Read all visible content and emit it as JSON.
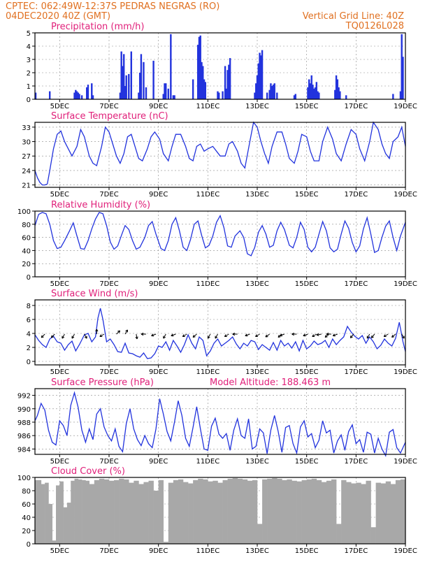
{
  "header": {
    "line1_left": "CPTEC:   062:49W-12:37S   PEDRAS NEGRAS (RO)",
    "line2_left": "04DEC2020 40Z (GMT)",
    "line2_right": "Vertical Grid Line: 40Z",
    "line3_right": "TQ0126L028"
  },
  "colors": {
    "header": "#e07020",
    "title": "#e0207a",
    "line": "#2233dd",
    "cloud": "#a8a8a8"
  },
  "x_axis": {
    "tick_labels": [
      "5DEC",
      "7DEC",
      "9DEC",
      "11DEC",
      "13DEC",
      "15DEC",
      "17DEC",
      "19DEC"
    ],
    "tick_days": [
      5,
      7,
      9,
      11,
      13,
      15,
      17,
      19
    ],
    "domain_days": [
      4.0,
      19.0
    ]
  },
  "chart_data": [
    {
      "type": "bar",
      "title": "Precipitation (mm/h)",
      "ylim": [
        0,
        5
      ],
      "yticks": [
        "0",
        "1",
        "2",
        "3",
        "4",
        "5"
      ],
      "x_days": [
        4.03,
        4.6,
        5.6,
        5.65,
        5.7,
        5.75,
        5.8,
        5.9,
        6.1,
        6.15,
        6.3,
        6.35,
        7.45,
        7.5,
        7.55,
        7.6,
        7.65,
        7.7,
        7.8,
        7.9,
        8.2,
        8.25,
        8.3,
        8.4,
        8.5,
        8.8,
        9.2,
        9.25,
        9.3,
        9.4,
        9.5,
        9.6,
        9.65,
        10.4,
        10.6,
        10.65,
        10.7,
        10.75,
        10.8,
        10.85,
        10.9,
        11.4,
        11.45,
        11.6,
        11.7,
        11.75,
        11.8,
        11.85,
        11.9,
        12.9,
        12.95,
        13.0,
        13.05,
        13.1,
        13.15,
        13.2,
        13.4,
        13.5,
        13.55,
        13.6,
        13.65,
        13.7,
        13.8,
        14.5,
        14.55,
        15.05,
        15.1,
        15.15,
        15.2,
        15.25,
        15.3,
        15.35,
        15.4,
        15.45,
        15.5,
        16.15,
        16.2,
        16.25,
        16.3,
        16.35,
        16.6,
        18.5,
        18.8,
        18.85,
        18.9
      ],
      "values": [
        0.5,
        0.6,
        0.5,
        0.7,
        0.6,
        0.5,
        0.4,
        0.3,
        0.9,
        1.1,
        1.2,
        0.3,
        0.5,
        3.6,
        2.5,
        3.4,
        1.0,
        1.8,
        1.9,
        3.6,
        0.5,
        2.0,
        3.4,
        2.8,
        0.9,
        2.9,
        0.4,
        1.2,
        1.2,
        0.8,
        4.9,
        0.3,
        0.3,
        1.5,
        4.1,
        4.7,
        4.8,
        2.8,
        2.5,
        1.5,
        1.3,
        0.6,
        0.5,
        0.6,
        2.5,
        0.8,
        2.2,
        2.6,
        3.1,
        0.5,
        1.2,
        1.8,
        2.7,
        3.5,
        3.3,
        3.7,
        0.5,
        0.7,
        1.2,
        1.0,
        1.1,
        1.2,
        0.5,
        0.3,
        0.4,
        0.9,
        1.5,
        1.2,
        1.8,
        1.1,
        0.8,
        0.9,
        1.3,
        0.6,
        0.5,
        0.7,
        1.8,
        1.5,
        0.9,
        0.6,
        0.3,
        0.4,
        0.6,
        4.9,
        3.2
      ]
    },
    {
      "type": "line",
      "title": "Surface Temperature (nC)",
      "ylim": [
        20.5,
        34
      ],
      "yticks": [
        "21",
        "24",
        "27",
        "30",
        "33"
      ],
      "x_days": [
        4.0,
        4.1,
        4.2,
        4.3,
        4.4,
        4.5,
        4.6,
        4.75,
        4.9,
        5.05,
        5.2,
        5.35,
        5.5,
        5.7,
        5.85,
        6.0,
        6.2,
        6.35,
        6.5,
        6.7,
        6.85,
        7.0,
        7.15,
        7.3,
        7.45,
        7.6,
        7.75,
        7.9,
        8.05,
        8.2,
        8.35,
        8.55,
        8.7,
        8.85,
        9.05,
        9.2,
        9.4,
        9.55,
        9.7,
        9.9,
        10.1,
        10.25,
        10.4,
        10.55,
        10.7,
        10.85,
        11.0,
        11.2,
        11.35,
        11.5,
        11.7,
        11.85,
        12.0,
        12.2,
        12.35,
        12.5,
        12.7,
        12.85,
        13.0,
        13.15,
        13.3,
        13.45,
        13.6,
        13.8,
        14.0,
        14.15,
        14.3,
        14.5,
        14.65,
        14.8,
        15.0,
        15.15,
        15.3,
        15.5,
        15.65,
        15.85,
        16.05,
        16.2,
        16.4,
        16.6,
        16.8,
        17.0,
        17.15,
        17.35,
        17.55,
        17.7,
        17.9,
        18.05,
        18.2,
        18.35,
        18.5,
        18.7,
        18.85,
        19.0
      ],
      "values": [
        24.0,
        22.5,
        21.5,
        21.0,
        21.0,
        21.2,
        24.0,
        28.5,
        31.5,
        32.2,
        30.0,
        28.5,
        27.0,
        29.0,
        32.5,
        31.0,
        27.0,
        25.5,
        25.0,
        29.0,
        33.0,
        32.0,
        29.5,
        27.0,
        25.5,
        27.5,
        31.0,
        31.5,
        29.0,
        26.5,
        26.0,
        28.5,
        31.0,
        32.0,
        30.5,
        27.5,
        26.0,
        29.0,
        31.5,
        31.5,
        29.0,
        26.5,
        26.0,
        29.0,
        29.5,
        28.0,
        28.5,
        29.0,
        28.0,
        27.0,
        27.0,
        29.5,
        30.0,
        28.0,
        25.5,
        24.5,
        30.0,
        34.0,
        33.0,
        30.0,
        27.5,
        25.5,
        29.0,
        32.0,
        32.0,
        29.5,
        26.5,
        25.5,
        28.0,
        31.5,
        31.0,
        28.0,
        26.0,
        26.0,
        30.0,
        33.0,
        30.5,
        27.5,
        26.0,
        29.5,
        32.5,
        31.5,
        28.5,
        26.0,
        30.0,
        34.0,
        32.5,
        29.5,
        27.5,
        26.5,
        30.0,
        31.0,
        33.0,
        29.0
      ]
    },
    {
      "type": "line",
      "title": "Relative Humidity (%)",
      "ylim": [
        0,
        100
      ],
      "yticks": [
        "0",
        "20",
        "40",
        "60",
        "80",
        "100"
      ],
      "x_days": [
        4.0,
        4.15,
        4.3,
        4.45,
        4.6,
        4.75,
        4.9,
        5.05,
        5.2,
        5.4,
        5.55,
        5.7,
        5.85,
        6.0,
        6.15,
        6.3,
        6.45,
        6.6,
        6.75,
        6.9,
        7.05,
        7.2,
        7.35,
        7.5,
        7.65,
        7.8,
        7.95,
        8.1,
        8.25,
        8.45,
        8.6,
        8.75,
        8.9,
        9.1,
        9.25,
        9.4,
        9.55,
        9.7,
        9.85,
        10.0,
        10.15,
        10.3,
        10.45,
        10.6,
        10.75,
        10.9,
        11.05,
        11.2,
        11.35,
        11.5,
        11.65,
        11.8,
        11.95,
        12.1,
        12.3,
        12.45,
        12.6,
        12.75,
        12.9,
        13.05,
        13.2,
        13.35,
        13.5,
        13.65,
        13.8,
        13.95,
        14.1,
        14.3,
        14.45,
        14.6,
        14.75,
        14.9,
        15.05,
        15.2,
        15.35,
        15.5,
        15.65,
        15.8,
        15.95,
        16.1,
        16.25,
        16.4,
        16.55,
        16.7,
        16.85,
        17.0,
        17.15,
        17.3,
        17.45,
        17.6,
        17.75,
        17.9,
        18.05,
        18.2,
        18.35,
        18.5,
        18.65,
        18.8,
        19.0
      ],
      "values": [
        78,
        95,
        98,
        96,
        80,
        55,
        43,
        45,
        55,
        70,
        82,
        62,
        43,
        42,
        55,
        73,
        88,
        98,
        96,
        78,
        53,
        42,
        47,
        63,
        78,
        72,
        55,
        42,
        45,
        60,
        78,
        84,
        65,
        43,
        40,
        55,
        80,
        90,
        70,
        45,
        40,
        57,
        80,
        85,
        63,
        44,
        48,
        62,
        83,
        93,
        75,
        47,
        45,
        62,
        70,
        60,
        35,
        32,
        45,
        68,
        78,
        65,
        45,
        48,
        70,
        83,
        72,
        48,
        44,
        60,
        83,
        72,
        45,
        38,
        45,
        65,
        84,
        70,
        44,
        38,
        42,
        65,
        85,
        74,
        52,
        38,
        47,
        73,
        90,
        65,
        37,
        40,
        60,
        77,
        85,
        60,
        40,
        62,
        83
      ]
    },
    {
      "type": "line",
      "title": "Surface Wind (m/s)",
      "ylim": [
        -0.5,
        8.8
      ],
      "yticks": [
        "0",
        "2",
        "4",
        "6",
        "8"
      ],
      "x_days": [
        4.0,
        4.15,
        4.3,
        4.45,
        4.6,
        4.75,
        4.9,
        5.05,
        5.2,
        5.35,
        5.5,
        5.65,
        5.8,
        6.0,
        6.15,
        6.3,
        6.45,
        6.55,
        6.65,
        6.75,
        6.9,
        7.05,
        7.2,
        7.35,
        7.5,
        7.65,
        7.8,
        7.95,
        8.1,
        8.25,
        8.4,
        8.55,
        8.7,
        8.85,
        9.0,
        9.15,
        9.3,
        9.45,
        9.6,
        9.75,
        9.9,
        10.05,
        10.2,
        10.35,
        10.5,
        10.65,
        10.8,
        10.95,
        11.1,
        11.25,
        11.4,
        11.55,
        11.7,
        11.85,
        12.0,
        12.15,
        12.3,
        12.45,
        12.6,
        12.75,
        12.9,
        13.05,
        13.2,
        13.35,
        13.5,
        13.65,
        13.8,
        13.95,
        14.1,
        14.25,
        14.4,
        14.55,
        14.7,
        14.85,
        15.0,
        15.15,
        15.3,
        15.45,
        15.6,
        15.75,
        15.9,
        16.05,
        16.2,
        16.35,
        16.5,
        16.65,
        16.8,
        16.95,
        17.1,
        17.25,
        17.4,
        17.55,
        17.7,
        17.85,
        18.0,
        18.15,
        18.3,
        18.45,
        18.6,
        18.75,
        18.9,
        19.0
      ],
      "values": [
        3.8,
        3.0,
        2.4,
        2.0,
        3.2,
        3.6,
        2.8,
        2.6,
        1.6,
        2.4,
        2.9,
        1.5,
        2.4,
        3.8,
        4.0,
        2.8,
        3.5,
        6.2,
        7.6,
        6.0,
        2.8,
        3.2,
        2.4,
        1.4,
        1.3,
        2.6,
        1.2,
        1.1,
        0.8,
        0.6,
        1.2,
        0.4,
        0.5,
        1.1,
        2.2,
        2.0,
        2.8,
        1.6,
        3.0,
        2.2,
        1.3,
        2.4,
        3.8,
        2.6,
        1.8,
        3.5,
        3.0,
        0.8,
        1.5,
        2.6,
        3.2,
        2.2,
        2.6,
        3.0,
        3.5,
        2.5,
        1.8,
        2.6,
        2.2,
        3.0,
        2.8,
        1.7,
        2.4,
        2.0,
        1.6,
        2.7,
        1.6,
        3.0,
        2.2,
        2.6,
        1.9,
        2.8,
        1.5,
        3.0,
        1.8,
        2.2,
        2.9,
        2.4,
        2.6,
        3.0,
        2.0,
        3.2,
        2.4,
        3.0,
        3.5,
        5.0,
        4.2,
        3.6,
        3.2,
        3.7,
        2.6,
        3.5,
        2.8,
        1.8,
        2.3,
        3.2,
        2.6,
        2.2,
        3.3,
        5.6,
        2.8,
        1.4
      ],
      "vector_x_days": [
        4.4,
        4.8,
        5.2,
        5.6,
        6.0,
        6.5,
        6.8,
        7.3,
        7.65,
        8.1,
        8.5,
        8.9,
        9.3,
        9.7,
        10.15,
        10.55,
        11.1,
        11.4,
        11.85,
        12.2,
        12.7,
        13.1,
        13.5,
        14.0,
        14.1,
        14.6,
        15.05,
        15.4,
        15.6,
        15.9,
        16.0,
        16.25,
        16.9,
        17.55,
        17.75,
        18.3,
        18.6,
        18.85
      ],
      "vector_directions_deg": [
        225,
        225,
        240,
        240,
        300,
        90,
        210,
        45,
        60,
        280,
        180,
        200,
        240,
        200,
        210,
        220,
        240,
        240,
        210,
        180,
        200,
        210,
        215,
        220,
        200,
        180,
        200,
        210,
        190,
        220,
        180,
        200,
        230,
        240,
        230,
        210,
        220,
        300
      ]
    },
    {
      "type": "line",
      "title": "Surface Pressure (hPa)",
      "annotation": "Model Altitude: 188.463 m",
      "ylim": [
        983.2,
        993.0
      ],
      "yticks": [
        "984",
        "986",
        "988",
        "990",
        "992"
      ],
      "x_days": [
        4.0,
        4.1,
        4.25,
        4.4,
        4.55,
        4.7,
        4.85,
        5.0,
        5.15,
        5.3,
        5.45,
        5.6,
        5.75,
        5.9,
        6.05,
        6.2,
        6.35,
        6.5,
        6.65,
        6.8,
        6.95,
        7.1,
        7.25,
        7.4,
        7.55,
        7.7,
        7.85,
        8.0,
        8.15,
        8.3,
        8.45,
        8.6,
        8.75,
        8.9,
        9.05,
        9.2,
        9.35,
        9.5,
        9.65,
        9.8,
        9.95,
        10.1,
        10.25,
        10.4,
        10.55,
        10.7,
        10.85,
        11.0,
        11.15,
        11.3,
        11.45,
        11.6,
        11.75,
        11.9,
        12.05,
        12.2,
        12.35,
        12.5,
        12.65,
        12.8,
        12.95,
        13.1,
        13.25,
        13.4,
        13.55,
        13.7,
        13.85,
        14.0,
        14.15,
        14.3,
        14.45,
        14.6,
        14.75,
        14.9,
        15.05,
        15.2,
        15.35,
        15.5,
        15.65,
        15.8,
        15.95,
        16.1,
        16.25,
        16.4,
        16.55,
        16.7,
        16.85,
        17.0,
        17.15,
        17.3,
        17.45,
        17.6,
        17.75,
        17.9,
        18.05,
        18.2,
        18.35,
        18.5,
        18.65,
        18.8,
        19.0
      ],
      "values": [
        988.2,
        989.0,
        990.8,
        989.8,
        986.8,
        985.0,
        984.6,
        988.2,
        987.5,
        986.0,
        990.5,
        992.4,
        990.2,
        986.8,
        985.0,
        987.0,
        985.4,
        989.2,
        990.0,
        987.3,
        986.0,
        985.2,
        987.0,
        984.4,
        983.6,
        987.8,
        990.0,
        987.0,
        985.4,
        984.5,
        986.0,
        984.8,
        984.2,
        987.0,
        991.5,
        989.2,
        986.6,
        985.2,
        988.0,
        991.2,
        989.0,
        985.6,
        984.4,
        987.2,
        990.3,
        987.0,
        984.0,
        983.8,
        987.4,
        988.6,
        986.2,
        985.6,
        986.3,
        983.8,
        986.8,
        988.5,
        986.0,
        985.6,
        988.5,
        984.0,
        984.4,
        987.0,
        986.4,
        983.3,
        986.8,
        989.0,
        986.6,
        983.5,
        987.2,
        987.5,
        984.8,
        983.4,
        987.3,
        988.2,
        985.8,
        986.3,
        984.2,
        985.3,
        988.2,
        986.4,
        986.8,
        983.4,
        985.2,
        986.1,
        983.8,
        986.6,
        987.6,
        984.8,
        985.4,
        983.5,
        986.5,
        986.2,
        983.4,
        985.6,
        984.0,
        983.0,
        986.5,
        986.9,
        984.2,
        983.4,
        985.0
      ]
    },
    {
      "type": "bar",
      "title": "Cloud Cover (%)",
      "ylim": [
        0,
        100
      ],
      "yticks": [
        "0",
        "20",
        "40",
        "60",
        "80",
        "100"
      ],
      "x_days": [
        4.0,
        4.25,
        4.4,
        4.55,
        4.7,
        4.85,
        5.0,
        5.15,
        5.3,
        5.45,
        5.6,
        5.75,
        5.9,
        6.05,
        6.2,
        6.4,
        6.6,
        6.8,
        7.0,
        7.2,
        7.4,
        7.6,
        7.8,
        8.0,
        8.2,
        8.4,
        8.6,
        8.8,
        9.0,
        9.2,
        9.4,
        9.6,
        9.8,
        10.0,
        10.2,
        10.4,
        10.6,
        10.8,
        11.0,
        11.2,
        11.4,
        11.6,
        11.8,
        12.0,
        12.2,
        12.4,
        12.6,
        12.8,
        13.0,
        13.2,
        13.4,
        13.6,
        13.8,
        14.0,
        14.2,
        14.4,
        14.6,
        14.8,
        15.0,
        15.2,
        15.4,
        15.6,
        15.8,
        16.0,
        16.2,
        16.4,
        16.6,
        16.8,
        17.0,
        17.2,
        17.4,
        17.6,
        17.8,
        18.0,
        18.2,
        18.4,
        18.6,
        18.8
      ],
      "values": [
        96,
        90,
        92,
        60,
        5,
        88,
        94,
        55,
        62,
        95,
        98,
        97,
        96,
        95,
        90,
        96,
        98,
        97,
        95,
        96,
        98,
        97,
        92,
        95,
        90,
        93,
        95,
        80,
        96,
        3,
        92,
        96,
        97,
        93,
        91,
        96,
        98,
        97,
        94,
        95,
        92,
        96,
        98,
        99,
        98,
        97,
        95,
        96,
        30,
        97,
        98,
        99,
        98,
        96,
        97,
        95,
        94,
        96,
        97,
        98,
        96,
        93,
        95,
        97,
        30,
        96,
        93,
        91,
        92,
        90,
        95,
        25,
        92,
        91,
        94,
        90,
        96,
        97
      ]
    }
  ]
}
